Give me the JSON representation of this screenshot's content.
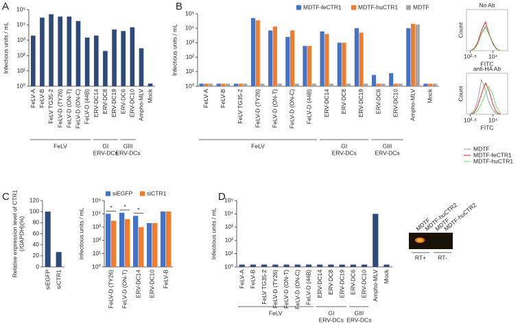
{
  "chart_data": [
    {
      "type": "bar",
      "panel": "A",
      "y_label": "Infectious units / mL",
      "yscale": "log",
      "color": "#2d4a7a",
      "categories": [
        "FeLV-A",
        "FeLV-B",
        "FeLV TG35-2",
        "FeLV-D (TY26)",
        "FeLV-D (ON-T)",
        "FeLV-D (ON-C)",
        "FeLV-D (44B)",
        "ERV-DC14",
        "ERV-DC8",
        "ERV-DC19",
        "ERV-DC6",
        "ERV-DC10",
        "Ampho-MLV",
        "Mock"
      ],
      "values": [
        2000,
        30000,
        50000,
        35000,
        35000,
        18000,
        1500,
        2000,
        200,
        5000,
        4000,
        7000,
        300,
        1.5
      ],
      "ylim": [
        1,
        100000
      ],
      "yticks": [
        {
          "value": 1,
          "label": "10⁰"
        },
        {
          "value": 10,
          "label": "10¹"
        },
        {
          "value": 100,
          "label": "10²"
        },
        {
          "value": 1000,
          "label": "10³"
        },
        {
          "value": 10000,
          "label": "10⁴"
        },
        {
          "value": 100000,
          "label": "10⁵"
        }
      ],
      "groups": [
        [
          "FeLV"
        ],
        [
          "GI",
          "ERV-DCs"
        ],
        [
          "GIII",
          "ERV-DCs"
        ]
      ]
    },
    {
      "type": "bar",
      "panel": "B",
      "y_label": "Infectious units / mL",
      "yscale": "log",
      "legend": "top",
      "categories": [
        "FeLV-A",
        "FeLV-B",
        "FeLV TG35-2",
        "FeLV-D (TY26)",
        "FeLV-D (ON-T)",
        "FeLV-D (ON-C)",
        "FeLV-D (44B)",
        "ERV-DC14",
        "ERV-DC8",
        "ERV-DC19",
        "ERV-DC6",
        "ERV-DC10",
        "Ampho-MLV",
        "Mock"
      ],
      "series": [
        {
          "name": "MDTF-feCTR1",
          "color": "#4472c4",
          "values": [
            1.5,
            1.5,
            1.5,
            50000,
            7000,
            2500,
            600,
            6000,
            1000,
            10000,
            6,
            8,
            10000,
            1.5
          ]
        },
        {
          "name": "MDTF-huCTR1",
          "color": "#ed7d31",
          "values": [
            1.5,
            1.5,
            1.5,
            35000,
            13000,
            7000,
            600,
            4000,
            1000,
            5000,
            1.5,
            1.5,
            20000,
            1.5
          ]
        },
        {
          "name": "MDTF",
          "color": "#a5a5a5",
          "values": [
            1.5,
            1.5,
            1.5,
            1.5,
            1.5,
            1.5,
            1.5,
            1.5,
            1.5,
            1.5,
            1.5,
            1.5,
            18000,
            1.5
          ]
        }
      ],
      "ylim": [
        1,
        100000
      ],
      "yticks": [
        {
          "value": 1,
          "label": "10⁰"
        },
        {
          "value": 10,
          "label": "10¹"
        },
        {
          "value": 100,
          "label": "10²"
        },
        {
          "value": 1000,
          "label": "10³"
        },
        {
          "value": 10000,
          "label": "10⁴"
        },
        {
          "value": 100000,
          "label": "10⁵"
        }
      ],
      "groups": [
        [
          "FeLV"
        ],
        [
          "GI",
          "ERV-DCs"
        ],
        [
          "GIII",
          "ERV-DCs"
        ]
      ]
    },
    {
      "type": "line",
      "title": "No Ab",
      "x_label": "FITC",
      "y_label": "Count",
      "xscale": "log",
      "x": [
        600,
        1000,
        1500,
        2500,
        4000,
        6000,
        10000,
        15000,
        25000
      ],
      "series": [
        {
          "color": "#999999",
          "values": [
            0,
            20,
            80,
            220,
            300,
            200,
            80,
            20,
            0
          ]
        },
        {
          "color": "#e02020",
          "values": [
            0,
            25,
            90,
            250,
            350,
            220,
            90,
            25,
            0
          ]
        },
        {
          "color": "#66dd66",
          "values": [
            0,
            15,
            70,
            200,
            280,
            210,
            100,
            30,
            0
          ]
        }
      ],
      "xlim": [
        400,
        60000
      ],
      "ylim": [
        0,
        500
      ],
      "xticks": [
        {
          "value": 631,
          "label": "10²·⁸"
        },
        {
          "value": 10000,
          "label": "10⁴"
        }
      ]
    },
    {
      "type": "line",
      "title": "anti-HA Ab",
      "x_label": "FITC",
      "y_label": "Count",
      "xscale": "log",
      "legend": "bottom",
      "x": [
        600,
        1000,
        1500,
        2500,
        4000,
        6000,
        10000,
        15000,
        25000
      ],
      "series": [
        {
          "name": "MDTF",
          "color": "#999999",
          "values": [
            0,
            40,
            150,
            420,
            300,
            150,
            50,
            10,
            0
          ]
        },
        {
          "name": "MDTF-feCTR1",
          "color": "#e02020",
          "values": [
            0,
            20,
            90,
            250,
            380,
            300,
            120,
            30,
            0
          ]
        },
        {
          "name": "MDTF-huCTR1",
          "color": "#66dd66",
          "values": [
            0,
            10,
            40,
            130,
            250,
            340,
            240,
            90,
            10
          ]
        }
      ],
      "xlim": [
        400,
        60000
      ],
      "ylim": [
        0,
        500
      ],
      "xticks": [
        {
          "value": 631,
          "label": "10²·⁸"
        },
        {
          "value": 10000,
          "label": "10⁴"
        }
      ]
    },
    {
      "type": "bar",
      "panel": "C",
      "y_label": [
        "Relative expression level of CTR1",
        "(/GAPDH)(%)"
      ],
      "color": "#2d4a7a",
      "categories": [
        "siEGFP",
        "siCTR1"
      ],
      "values": [
        100,
        27
      ],
      "ylim": [
        0,
        120
      ],
      "yticks": [
        0,
        20,
        40,
        60,
        80,
        100,
        120
      ]
    },
    {
      "type": "bar",
      "y_label": "Infectious units / mL",
      "yscale": "log",
      "legend": "top",
      "categories": [
        "FeLV-D (TY26)",
        "FeLV-D (ON-T)",
        "ERV-DC14",
        "ERV-DC10",
        "FeLV-B"
      ],
      "series": [
        {
          "name": "siEGFP",
          "color": "#4472c4",
          "values": [
            10000,
            12000,
            7000,
            2000,
            15000
          ]
        },
        {
          "name": "siCTR1",
          "color": "#ed7d31",
          "values": [
            3000,
            4000,
            1000,
            2000,
            15000
          ]
        }
      ],
      "significance": [
        "*",
        "*",
        "*",
        null,
        null
      ],
      "ylim": [
        1,
        100000
      ],
      "yticks": [
        {
          "value": 1,
          "label": "10⁰"
        },
        {
          "value": 10,
          "label": "10¹"
        },
        {
          "value": 100,
          "label": "10²"
        },
        {
          "value": 1000,
          "label": "10³"
        },
        {
          "value": 10000,
          "label": "10⁴"
        },
        {
          "value": 100000,
          "label": "10⁵"
        }
      ]
    },
    {
      "type": "bar",
      "panel": "D",
      "y_label": "Infectious units / mL",
      "yscale": "log",
      "color": "#2d4a7a",
      "categories": [
        "FeLV-A",
        "FeLV-B",
        "FeLV TG35-2",
        "FeLV-D (TY26)",
        "FeLV-D (ON-T)",
        "FeLV-D (ON-C)",
        "FeLV-D (44B)",
        "ERV-DC14",
        "ERV-DC8",
        "ERV-DC19",
        "ERV-DC6",
        "ERV-DC10",
        "Ampho-MLV",
        "Mock"
      ],
      "values": [
        1.5,
        1.5,
        1.5,
        1.5,
        1.5,
        1.5,
        1.5,
        1.5,
        1.5,
        1.5,
        1.5,
        1.5,
        10000,
        1.5
      ],
      "ylim": [
        1,
        100000
      ],
      "yticks": [
        {
          "value": 1,
          "label": "10⁰"
        },
        {
          "value": 10,
          "label": "10¹"
        },
        {
          "value": 100,
          "label": "10²"
        },
        {
          "value": 1000,
          "label": "10³"
        },
        {
          "value": 10000,
          "label": "10⁴"
        },
        {
          "value": 100000,
          "label": "10⁵"
        }
      ],
      "groups": [
        [
          "FeLV"
        ],
        [
          "GI",
          "ERV-DCs"
        ],
        [
          "GIII",
          "ERV-DCs"
        ]
      ]
    }
  ],
  "gel": {
    "lanes": [
      "MDTF",
      "MDTF-huCTR2",
      "MDTF",
      "MDTF-huCTR2"
    ],
    "groups": [
      "RT+",
      "RT-"
    ]
  }
}
